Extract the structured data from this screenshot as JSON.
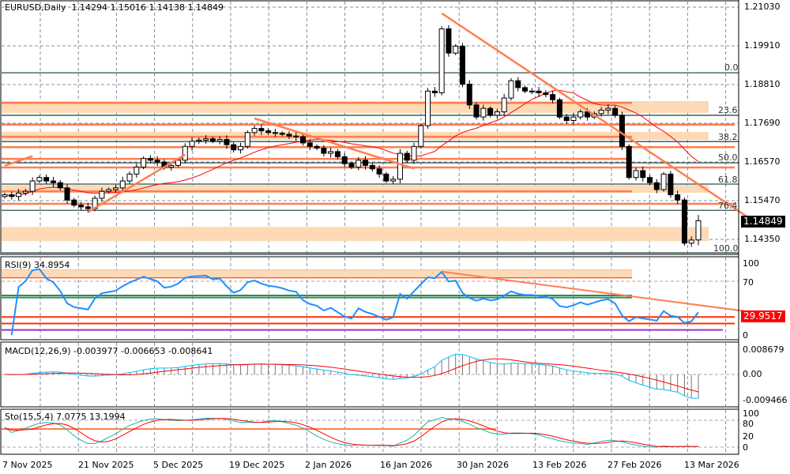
{
  "header": {
    "symbol": "EURUSD,Daily",
    "open": "1.14294",
    "high": "1.15016",
    "low": "1.14138",
    "close": "1.14849"
  },
  "price_axis": {
    "labels": [
      "1.21030",
      "1.19910",
      "1.18810",
      "1.17690",
      "1.16570",
      "1.15470",
      "1.14350"
    ],
    "current": "1.14849"
  },
  "fib_labels": [
    "0.0",
    "23.6",
    "38.2",
    "50.0",
    "61.8",
    "76.4",
    "100.0"
  ],
  "rsi": {
    "label": "RSI(9) 34.8954",
    "axis": [
      "100",
      "70",
      "0"
    ],
    "tag": "29.9517"
  },
  "macd": {
    "label": "MACD(12,26,9) -0.003977 -0.006653 -0.008641",
    "axis": [
      "0.008679",
      "0.00",
      "-0.009466"
    ]
  },
  "sto": {
    "label": "Sto(15,5,4) 7.0775 13.1994",
    "axis": [
      "100",
      "80",
      "20",
      "0"
    ]
  },
  "dates": [
    "7 Nov 2025",
    "21 Nov 2025",
    "5 Dec 2025",
    "19 Dec 2025",
    "2 Jan 2026",
    "16 Jan 2026",
    "30 Jan 2026",
    "13 Feb 2026",
    "27 Feb 2026",
    "13 Mar 2026"
  ],
  "colors": {
    "bull": "#ffffff",
    "bear": "#000000",
    "ma": "#ff0000",
    "levels": "#ff7f50",
    "zone": "#fdd9b5",
    "fib": "#2f4f4f",
    "rsi": "#1e90ff",
    "macd_signal": "#ff0000",
    "macd_main": "#00bfff",
    "sto_main": "#20b2aa",
    "sto_signal": "#ff0000"
  },
  "chart_data": {
    "type": "candlestick",
    "symbol": "EURUSD",
    "timeframe": "Daily",
    "ylim": [
      1.1388,
      1.2106
    ],
    "last_bar": {
      "open": 1.14294,
      "high": 1.15016,
      "low": 1.14138,
      "close": 1.14849
    },
    "close": [
      1.156,
      1.1555,
      1.1565,
      1.157,
      1.16,
      1.161,
      1.16,
      1.1595,
      1.158,
      1.1545,
      1.153,
      1.1525,
      1.152,
      1.155,
      1.157,
      1.1575,
      1.158,
      1.16,
      1.162,
      1.164,
      1.1665,
      1.166,
      1.1655,
      1.164,
      1.1645,
      1.166,
      1.17,
      1.1715,
      1.1718,
      1.1722,
      1.1715,
      1.172,
      1.1705,
      1.169,
      1.17,
      1.174,
      1.1752,
      1.1745,
      1.174,
      1.1738,
      1.1735,
      1.173,
      1.1728,
      1.171,
      1.17,
      1.1695,
      1.168,
      1.1685,
      1.167,
      1.165,
      1.164,
      1.166,
      1.1645,
      1.1635,
      1.162,
      1.16,
      1.1605,
      1.168,
      1.166,
      1.17,
      1.176,
      1.186,
      1.1855,
      1.204,
      1.197,
      1.199,
      1.188,
      1.182,
      1.1785,
      1.181,
      1.179,
      1.18,
      1.184,
      1.189,
      1.187,
      1.186,
      1.186,
      1.1855,
      1.185,
      1.1835,
      1.1785,
      1.1775,
      1.1785,
      1.18,
      1.1785,
      1.1795,
      1.1805,
      1.181,
      1.179,
      1.17,
      1.161,
      1.163,
      1.161,
      1.1595,
      1.1575,
      1.162,
      1.156,
      1.1545,
      1.142,
      1.1429,
      1.14849
    ],
    "moving_average_period": 20,
    "fibonacci": {
      "p0": 1.1913,
      "p100": 1.1392,
      "levels": [
        0,
        23.6,
        38.2,
        50.0,
        61.8,
        76.4,
        100.0
      ]
    },
    "horizontal_levels": [
      1.1826,
      1.1763,
      1.1728,
      1.1698,
      1.1664,
      1.1639,
      1.157,
      1.1534
    ],
    "zones": [
      [
        1.1797,
        1.1831
      ],
      [
        1.1719,
        1.1742
      ],
      [
        1.1566,
        1.1588
      ],
      [
        1.1426,
        1.1467
      ]
    ],
    "trendlines": [
      {
        "from": [
          63,
          1.2085
        ],
        "to": [
          107,
          1.1497
        ]
      },
      {
        "from": [
          36,
          1.1781
        ],
        "to": [
          59,
          1.1636
        ]
      },
      {
        "from": [
          12,
          1.151
        ],
        "to": [
          26,
          1.1676
        ]
      },
      {
        "from": [
          0,
          1.1644
        ],
        "to": [
          4,
          1.1672
        ]
      }
    ],
    "rsi_levels": [
      90,
      80,
      55,
      52,
      25,
      16,
      7
    ],
    "rsi_trendline": {
      "from": [
        63,
        88
      ],
      "to": [
        107,
        29.95
      ]
    }
  }
}
